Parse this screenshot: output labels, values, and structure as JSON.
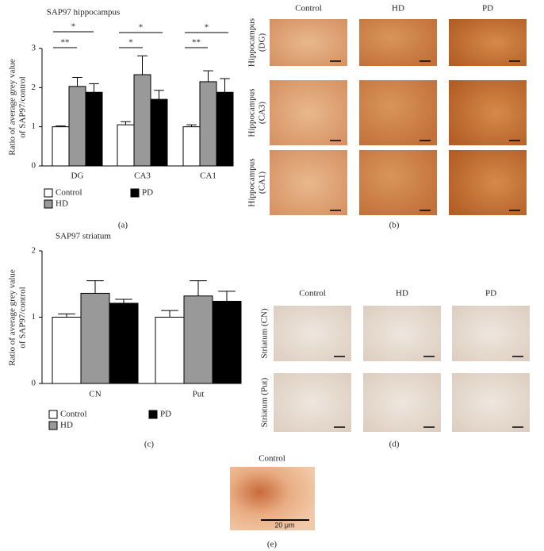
{
  "chart_data": [
    {
      "type": "bar",
      "title": "SAP97 hippocampus",
      "y_label": [
        "Ratio of average grey value",
        "of SAP97/control"
      ],
      "categories": [
        "DG",
        "CA3",
        "CA1"
      ],
      "series": [
        {
          "name": "Control",
          "color": "#ffffff",
          "values": [
            1.0,
            1.05,
            1.0
          ],
          "errors": [
            0.02,
            0.08,
            0.05
          ]
        },
        {
          "name": "HD",
          "color": "#999999",
          "values": [
            2.03,
            2.33,
            2.15
          ],
          "errors": [
            0.23,
            0.48,
            0.28
          ]
        },
        {
          "name": "PD",
          "color": "#000000",
          "values": [
            1.88,
            1.7,
            1.88
          ],
          "errors": [
            0.22,
            0.23,
            0.35
          ]
        }
      ],
      "annotations": [
        "*",
        "**",
        "*",
        "*",
        "*",
        "**"
      ],
      "ylim": [
        0,
        3
      ],
      "yticks": [
        0,
        1,
        2,
        3
      ]
    },
    {
      "type": "bar",
      "title": "SAP97 striatum",
      "y_label": [
        "Ratio of average grey value",
        "of SAP97/control"
      ],
      "categories": [
        "CN",
        "Put"
      ],
      "series": [
        {
          "name": "Control",
          "color": "#ffffff",
          "values": [
            1.0,
            1.0
          ],
          "errors": [
            0.05,
            0.1
          ]
        },
        {
          "name": "HD",
          "color": "#999999",
          "values": [
            1.36,
            1.32
          ],
          "errors": [
            0.19,
            0.23
          ]
        },
        {
          "name": "PD",
          "color": "#000000",
          "values": [
            1.21,
            1.24
          ],
          "errors": [
            0.06,
            0.15
          ]
        }
      ],
      "ylim": [
        0,
        2
      ],
      "yticks": [
        0,
        1,
        2
      ]
    }
  ],
  "panel_labels": [
    "(a)",
    "(b)",
    "(c)",
    "(d)",
    "(e)"
  ],
  "micrographs": {
    "hippocampus": {
      "columns": [
        "Control",
        "HD",
        "PD"
      ],
      "rows": [
        [
          "Hippocampus",
          "(DG)"
        ],
        [
          "Hippocampus",
          "(CA3)"
        ],
        [
          "Hippocampus",
          "(CA1)"
        ]
      ]
    },
    "striatum": {
      "columns": [
        "Control",
        "HD",
        "PD"
      ],
      "rows": [
        "Striatum (CN)",
        "Striatum (Put)"
      ]
    },
    "single": {
      "title": "Control",
      "scale": "20 μm"
    }
  }
}
